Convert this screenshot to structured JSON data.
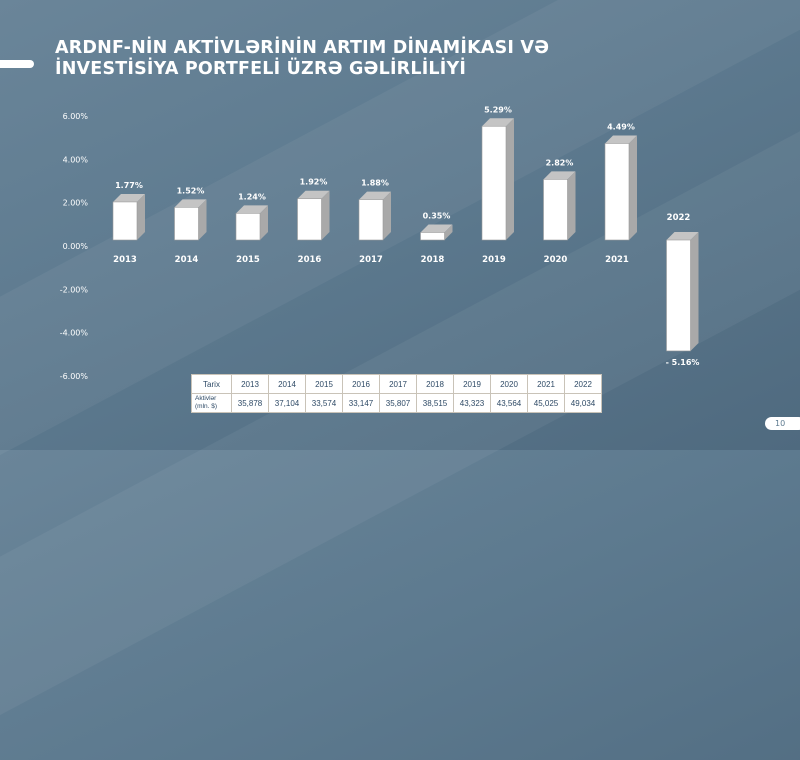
{
  "title_line1": "ARDNF-NİN AKTİVLƏRİNİN ARTIM DİNAMİKASI VƏ",
  "title_line2": "İNVESTİSİYA PORTFELİ ÜZRƏ GƏLİRLİLİYİ",
  "page_number": "10",
  "chart_data": {
    "type": "bar",
    "categories": [
      "2013",
      "2014",
      "2015",
      "2016",
      "2017",
      "2018",
      "2019",
      "2020",
      "2021",
      "2022"
    ],
    "values": [
      1.77,
      1.52,
      1.24,
      1.92,
      1.88,
      0.35,
      5.29,
      2.82,
      4.49,
      -5.16
    ],
    "data_labels": [
      "1.77%",
      "1.52%",
      "1.24%",
      "1.92%",
      "1.88%",
      "0.35%",
      "5.29%",
      "2.82%",
      "4.49%",
      "- 5.16%"
    ],
    "yticks": [
      6,
      4,
      2,
      0,
      -2,
      -4,
      -6
    ],
    "ytick_labels": [
      "6.00%",
      "4.00%",
      "2.00%",
      "0.00%",
      "-2.00%",
      "-4.00%",
      "-6.00%"
    ],
    "ylim": [
      -6,
      6
    ],
    "grid": false,
    "bar_style": "3d",
    "colors": {
      "front": "#ffffff",
      "side": "#a9a9a9",
      "top": "#c4c4c4"
    }
  },
  "table": {
    "header_label": "Tarix",
    "years": [
      "2013",
      "2014",
      "2015",
      "2016",
      "2017",
      "2018",
      "2019",
      "2020",
      "2021",
      "2022"
    ],
    "row_label_line1": "Aktivlər",
    "row_label_line2": "(mln. $)",
    "values": [
      "35,878",
      "37,104",
      "33,574",
      "33,147",
      "35,807",
      "38,515",
      "43,323",
      "43,564",
      "45,025",
      "49,034"
    ]
  }
}
